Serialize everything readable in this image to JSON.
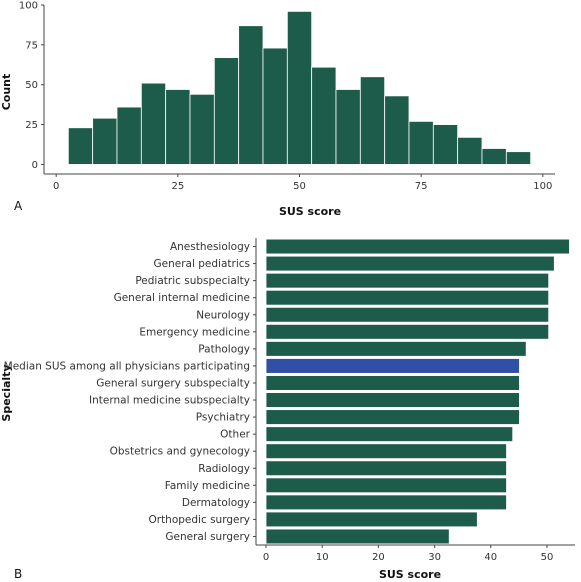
{
  "chart_data": [
    {
      "type": "bar",
      "panel_label": "A",
      "xlabel": "SUS score",
      "ylabel": "Count",
      "xlim": [
        -2.5,
        102.5
      ],
      "ylim": [
        -6,
        100
      ],
      "x_ticks": [
        "0",
        "25",
        "50",
        "75",
        "100"
      ],
      "y_ticks": [
        "0",
        "25",
        "50",
        "75",
        "100"
      ],
      "bin_width": 5,
      "bin_centers": [
        5,
        10,
        15,
        20,
        25,
        30,
        35,
        40,
        45,
        50,
        55,
        60,
        65,
        70,
        75,
        80,
        85,
        90,
        95
      ],
      "values": [
        23,
        29,
        36,
        51,
        47,
        44,
        67,
        87,
        73,
        96,
        61,
        47,
        55,
        43,
        27,
        25,
        17,
        10,
        8
      ],
      "bar_color": "#1d5c4a"
    },
    {
      "type": "bar",
      "orientation": "horizontal",
      "panel_label": "B",
      "xlabel": "SUS score",
      "ylabel": "Specialty",
      "xlim": [
        0,
        55
      ],
      "x_ticks": [
        "0",
        "10",
        "20",
        "30",
        "40",
        "50"
      ],
      "categories": [
        "Anesthesiology",
        "General pediatrics",
        "Pediatric subspecialty",
        "General internal medicine",
        "Neurology",
        "Emergency medicine",
        "Pathology",
        "Median SUS among all physicians participating",
        "General surgery subspecialty",
        "Internal medicine subspecialty",
        "Psychiatry",
        "Other",
        "Obstetrics and gynecology",
        "Radiology",
        "Family medicine",
        "Dermatology",
        "Orthopedic surgery",
        "General surgery"
      ],
      "values": [
        54,
        51.3,
        50.3,
        50.3,
        50.3,
        50.3,
        46.3,
        45.1,
        45.1,
        45.1,
        45.1,
        43.9,
        42.8,
        42.8,
        42.8,
        42.8,
        37.6,
        32.6
      ],
      "highlight_index": 7,
      "bar_color": "#1d5c4a",
      "highlight_color": "#2f4fa8"
    }
  ]
}
